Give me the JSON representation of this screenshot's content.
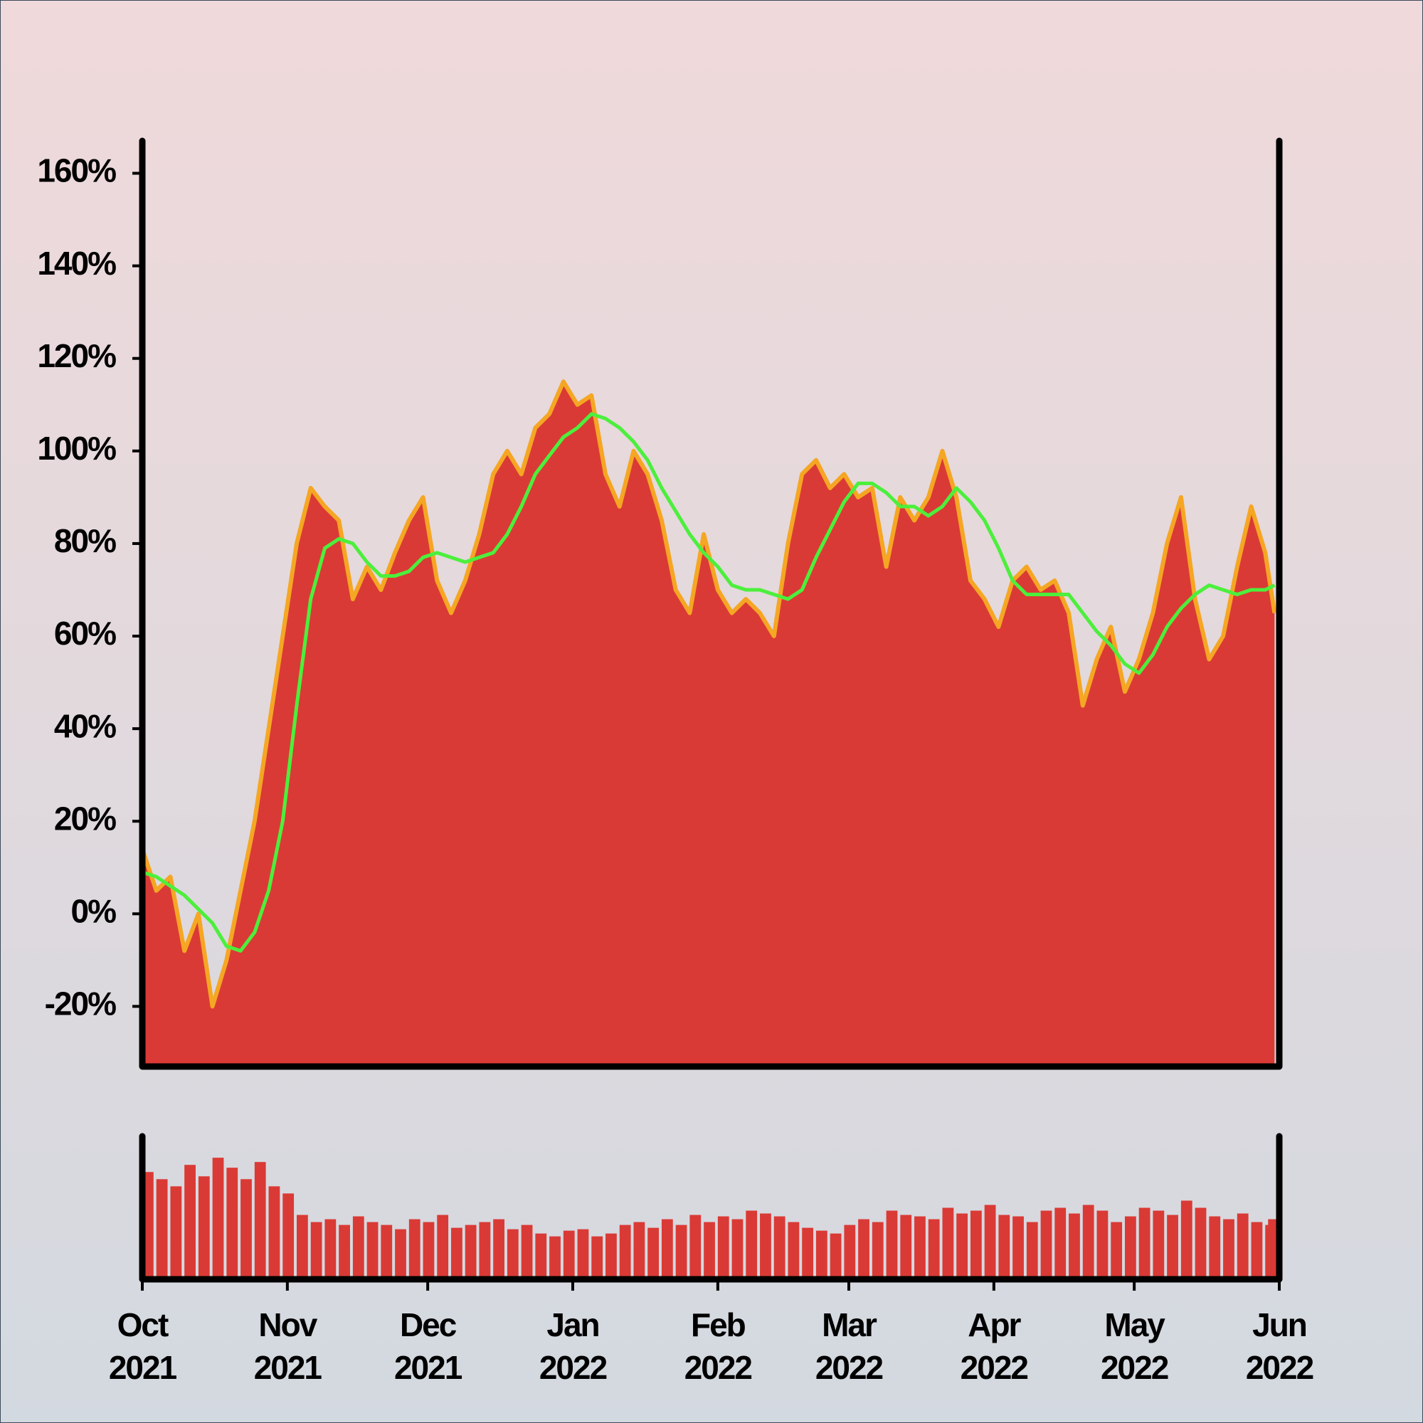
{
  "chart_data": [
    {
      "type": "area",
      "x": [
        0,
        3,
        6,
        9,
        12,
        15,
        18,
        21,
        24,
        27,
        30,
        33,
        36,
        39,
        42,
        45,
        48,
        51,
        54,
        57,
        60,
        63,
        66,
        69,
        72,
        75,
        78,
        81,
        84,
        87,
        90,
        93,
        96,
        99,
        102,
        105,
        108,
        111,
        114,
        117,
        120,
        123,
        126,
        129,
        132,
        135,
        138,
        141,
        144,
        147,
        150,
        153,
        156,
        159,
        162,
        165,
        168,
        171,
        174,
        177,
        180,
        183,
        186,
        189,
        192,
        195,
        198,
        201,
        204,
        207,
        210,
        213,
        216,
        219,
        222,
        225,
        228,
        231,
        234,
        237,
        240,
        242
      ],
      "series": [
        {
          "kind": "area",
          "color": "#da3a35",
          "edge_color": "#f5a623",
          "values": [
            14,
            5,
            8,
            -8,
            0,
            -20,
            -10,
            5,
            20,
            40,
            60,
            80,
            92,
            88,
            85,
            68,
            75,
            70,
            78,
            85,
            90,
            72,
            65,
            72,
            82,
            95,
            100,
            95,
            105,
            108,
            115,
            110,
            112,
            95,
            88,
            100,
            95,
            85,
            70,
            65,
            82,
            70,
            65,
            68,
            65,
            60,
            80,
            95,
            98,
            92,
            95,
            90,
            92,
            75,
            90,
            85,
            90,
            100,
            90,
            72,
            68,
            62,
            72,
            75,
            70,
            72,
            65,
            45,
            55,
            62,
            48,
            55,
            65,
            80,
            90,
            68,
            55,
            60,
            75,
            88,
            78,
            65
          ]
        },
        {
          "kind": "line",
          "color": "#4cef3c",
          "values": [
            9,
            8,
            6,
            4,
            1,
            -2,
            -7,
            -8,
            -4,
            5,
            20,
            45,
            68,
            79,
            81,
            80,
            76,
            73,
            73,
            74,
            77,
            78,
            77,
            76,
            77,
            78,
            82,
            88,
            95,
            99,
            103,
            105,
            108,
            107,
            105,
            102,
            98,
            92,
            87,
            82,
            78,
            75,
            71,
            70,
            70,
            69,
            68,
            70,
            77,
            83,
            89,
            93,
            93,
            91,
            88,
            88,
            86,
            88,
            92,
            89,
            85,
            79,
            72,
            69,
            69,
            69,
            69,
            65,
            61,
            58,
            54,
            52,
            56,
            62,
            66,
            69,
            71,
            70,
            69,
            70,
            70,
            71
          ]
        }
      ],
      "xlim": [
        0,
        243
      ],
      "ylim": [
        -33,
        167
      ],
      "yticks": [
        {
          "value": -20,
          "label": "-20%"
        },
        {
          "value": 0,
          "label": "0%"
        },
        {
          "value": 20,
          "label": "20%"
        },
        {
          "value": 40,
          "label": "40%"
        },
        {
          "value": 60,
          "label": "60%"
        },
        {
          "value": 80,
          "label": "80%"
        },
        {
          "value": 100,
          "label": "100%"
        },
        {
          "value": 120,
          "label": "120%"
        },
        {
          "value": 140,
          "label": "140%"
        },
        {
          "value": 160,
          "label": "160%"
        }
      ]
    },
    {
      "type": "bar",
      "x": [
        0,
        3,
        6,
        9,
        12,
        15,
        18,
        21,
        24,
        27,
        30,
        33,
        36,
        39,
        42,
        45,
        48,
        51,
        54,
        57,
        60,
        63,
        66,
        69,
        72,
        75,
        78,
        81,
        84,
        87,
        90,
        93,
        96,
        99,
        102,
        105,
        108,
        111,
        114,
        117,
        120,
        123,
        126,
        129,
        132,
        135,
        138,
        141,
        144,
        147,
        150,
        153,
        156,
        159,
        162,
        165,
        168,
        171,
        174,
        177,
        180,
        183,
        186,
        189,
        192,
        195,
        198,
        201,
        204,
        207,
        210,
        213,
        216,
        219,
        222,
        225,
        228,
        231,
        234,
        237,
        240,
        242
      ],
      "values": [
        75,
        70,
        65,
        80,
        72,
        85,
        78,
        70,
        82,
        65,
        60,
        45,
        40,
        42,
        38,
        44,
        40,
        38,
        35,
        42,
        40,
        45,
        36,
        38,
        40,
        42,
        35,
        38,
        32,
        30,
        34,
        35,
        30,
        32,
        38,
        40,
        36,
        42,
        38,
        45,
        40,
        44,
        42,
        48,
        46,
        44,
        40,
        36,
        34,
        32,
        38,
        42,
        40,
        48,
        45,
        44,
        42,
        50,
        46,
        48,
        52,
        45,
        44,
        40,
        48,
        50,
        46,
        52,
        48,
        40,
        44,
        50,
        48,
        45,
        55,
        50,
        44,
        42,
        46,
        40,
        38,
        42
      ],
      "color": "#da3a35",
      "xlim": [
        0,
        243
      ],
      "ylim": [
        0,
        100
      ],
      "xticks": [
        {
          "value": 0,
          "label": "Oct 2021"
        },
        {
          "value": 31,
          "label": "Nov 2021"
        },
        {
          "value": 61,
          "label": "Dec 2021"
        },
        {
          "value": 92,
          "label": "Jan 2022"
        },
        {
          "value": 123,
          "label": "Feb 2022"
        },
        {
          "value": 151,
          "label": "Mar 2022"
        },
        {
          "value": 182,
          "label": "Apr 2022"
        },
        {
          "value": 212,
          "label": "May 2022"
        },
        {
          "value": 243,
          "label": "Jun 2022"
        }
      ]
    }
  ]
}
